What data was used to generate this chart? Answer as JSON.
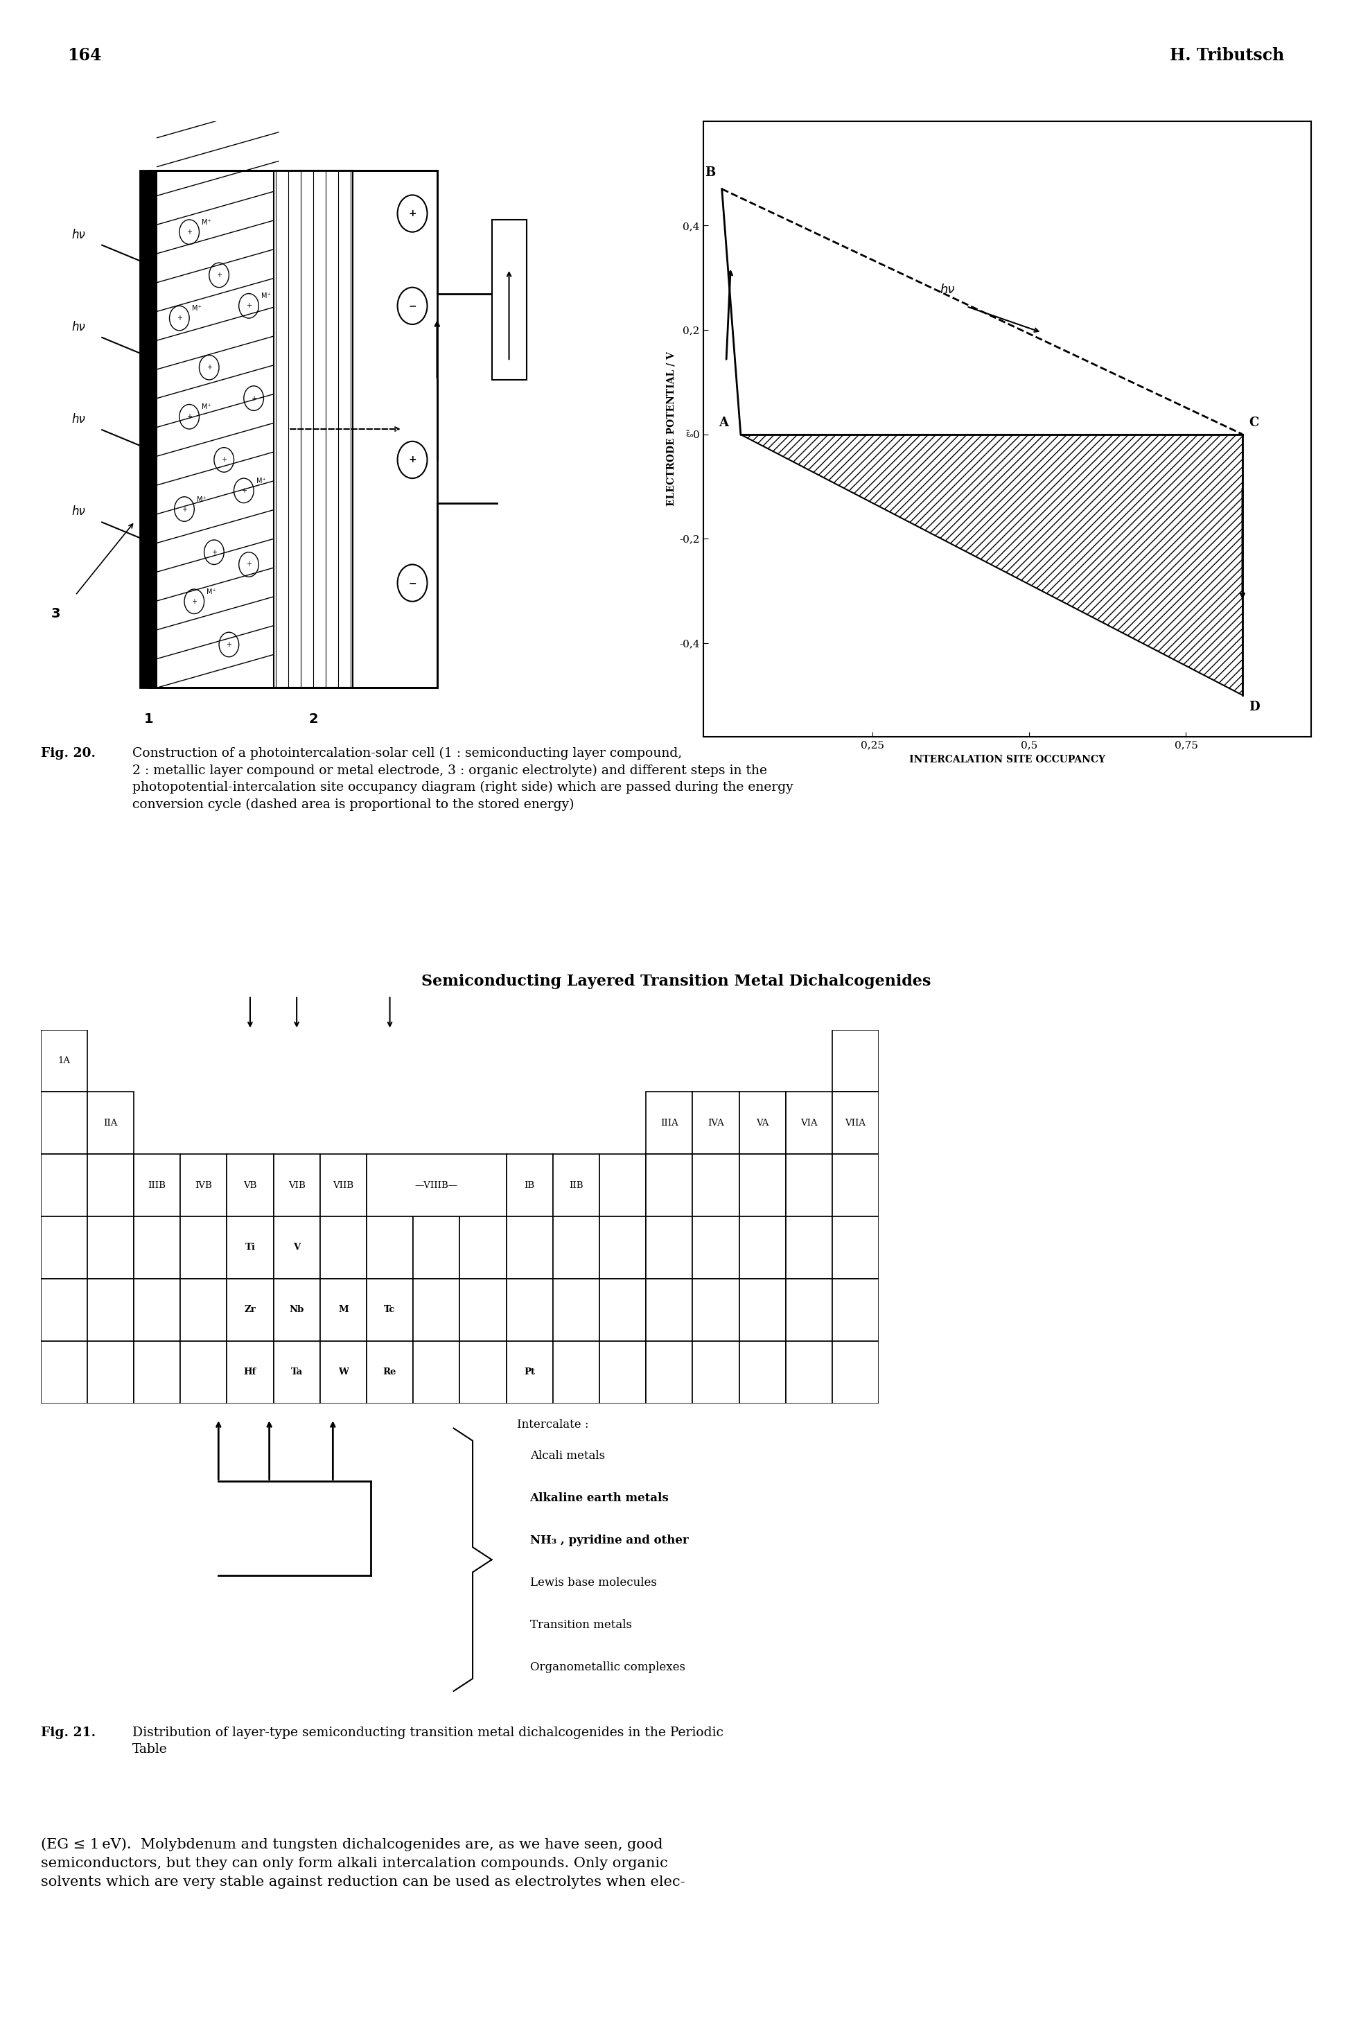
{
  "page_number": "164",
  "author": "H. Tributsch",
  "fig20_caption_bold": "Fig. 20.",
  "fig20_caption_text": "Construction of a photointercalation-solar cell (1 : semiconducting layer compound,\n2 : metallic layer compound or metal electrode, 3 : organic electrolyte) and different steps in the\nphotopotential-intercalation site occupancy diagram (right side) which are passed during the energy\nconversion cycle (dashed area is proportional to the stored energy)",
  "fig21_title": "Semiconducting Layered Transition Metal Dichalcogenides",
  "fig21_caption_bold": "Fig. 21.",
  "fig21_caption_text": "Distribution of layer-type semiconducting transition metal dichalcogenides in the Periodic\nTable",
  "body_text": "(EG ≤ 1 eV).  Molybdenum and tungsten dichalcogenides are, as we have seen, good\nsemiconductors, but they can only form alkali intercalation compounds. Only organic\nsolvents which are very stable against reduction can be used as electrolytes when elec-",
  "intercalate_label": "Intercalate :",
  "intercalate_items": [
    "Alcali metals",
    "Alkaline earth metals",
    "NH₃ , pyridine and other",
    "Lewis base molecules",
    "Transition metals",
    "Organometallic complexes"
  ]
}
